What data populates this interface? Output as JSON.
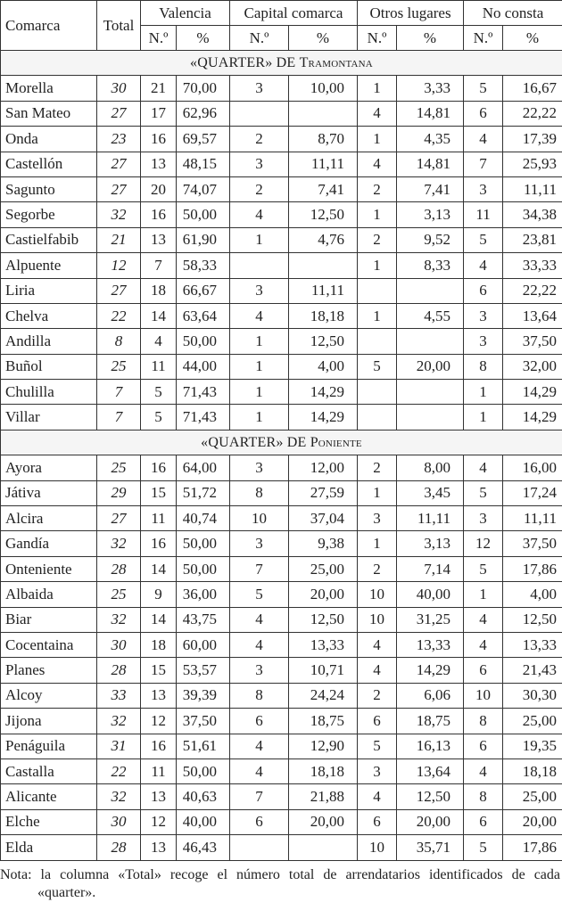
{
  "header": {
    "comarca": "Comarca",
    "total": "Total",
    "groups": [
      "Valencia",
      "Capital comarca",
      "Otros lugares",
      "No consta"
    ],
    "sub_n": "N.º",
    "sub_pct": "%"
  },
  "sections": [
    {
      "title_prefix": "«QUARTER» DE ",
      "title_name": "Tramontana",
      "rows": [
        [
          "Morella",
          "30",
          "21",
          "70,00",
          "3",
          "10,00",
          "1",
          "3,33",
          "5",
          "16,67"
        ],
        [
          "San Mateo",
          "27",
          "17",
          "62,96",
          "",
          "",
          "4",
          "14,81",
          "6",
          "22,22"
        ],
        [
          "Onda",
          "23",
          "16",
          "69,57",
          "2",
          "8,70",
          "1",
          "4,35",
          "4",
          "17,39"
        ],
        [
          "Castellón",
          "27",
          "13",
          "48,15",
          "3",
          "11,11",
          "4",
          "14,81",
          "7",
          "25,93"
        ],
        [
          "Sagunto",
          "27",
          "20",
          "74,07",
          "2",
          "7,41",
          "2",
          "7,41",
          "3",
          "11,11"
        ],
        [
          "Segorbe",
          "32",
          "16",
          "50,00",
          "4",
          "12,50",
          "1",
          "3,13",
          "11",
          "34,38"
        ],
        [
          "Castielfabib",
          "21",
          "13",
          "61,90",
          "1",
          "4,76",
          "2",
          "9,52",
          "5",
          "23,81"
        ],
        [
          "Alpuente",
          "12",
          "7",
          "58,33",
          "",
          "",
          "1",
          "8,33",
          "4",
          "33,33"
        ],
        [
          "Liria",
          "27",
          "18",
          "66,67",
          "3",
          "11,11",
          "",
          "",
          "6",
          "22,22"
        ],
        [
          "Chelva",
          "22",
          "14",
          "63,64",
          "4",
          "18,18",
          "1",
          "4,55",
          "3",
          "13,64"
        ],
        [
          "Andilla",
          "8",
          "4",
          "50,00",
          "1",
          "12,50",
          "",
          "",
          "3",
          "37,50"
        ],
        [
          "Buñol",
          "25",
          "11",
          "44,00",
          "1",
          "4,00",
          "5",
          "20,00",
          "8",
          "32,00"
        ],
        [
          "Chulilla",
          "7",
          "5",
          "71,43",
          "1",
          "14,29",
          "",
          "",
          "1",
          "14,29"
        ],
        [
          "Villar",
          "7",
          "5",
          "71,43",
          "1",
          "14,29",
          "",
          "",
          "1",
          "14,29"
        ]
      ]
    },
    {
      "title_prefix": "«QUARTER» DE ",
      "title_name": "Poniente",
      "rows": [
        [
          "Ayora",
          "25",
          "16",
          "64,00",
          "3",
          "12,00",
          "2",
          "8,00",
          "4",
          "16,00"
        ],
        [
          "Játiva",
          "29",
          "15",
          "51,72",
          "8",
          "27,59",
          "1",
          "3,45",
          "5",
          "17,24"
        ],
        [
          "Alcira",
          "27",
          "11",
          "40,74",
          "10",
          "37,04",
          "3",
          "11,11",
          "3",
          "11,11"
        ],
        [
          "Gandía",
          "32",
          "16",
          "50,00",
          "3",
          "9,38",
          "1",
          "3,13",
          "12",
          "37,50"
        ],
        [
          "Onteniente",
          "28",
          "14",
          "50,00",
          "7",
          "25,00",
          "2",
          "7,14",
          "5",
          "17,86"
        ],
        [
          "Albaida",
          "25",
          "9",
          "36,00",
          "5",
          "20,00",
          "10",
          "40,00",
          "1",
          "4,00"
        ],
        [
          "Biar",
          "32",
          "14",
          "43,75",
          "4",
          "12,50",
          "10",
          "31,25",
          "4",
          "12,50"
        ],
        [
          "Cocentaina",
          "30",
          "18",
          "60,00",
          "4",
          "13,33",
          "4",
          "13,33",
          "4",
          "13,33"
        ],
        [
          "Planes",
          "28",
          "15",
          "53,57",
          "3",
          "10,71",
          "4",
          "14,29",
          "6",
          "21,43"
        ],
        [
          "Alcoy",
          "33",
          "13",
          "39,39",
          "8",
          "24,24",
          "2",
          "6,06",
          "10",
          "30,30"
        ],
        [
          "Jijona",
          "32",
          "12",
          "37,50",
          "6",
          "18,75",
          "6",
          "18,75",
          "8",
          "25,00"
        ],
        [
          "Penáguila",
          "31",
          "16",
          "51,61",
          "4",
          "12,90",
          "5",
          "16,13",
          "6",
          "19,35"
        ],
        [
          "Castalla",
          "22",
          "11",
          "50,00",
          "4",
          "18,18",
          "3",
          "13,64",
          "4",
          "18,18"
        ],
        [
          "Alicante",
          "32",
          "13",
          "40,63",
          "7",
          "21,88",
          "4",
          "12,50",
          "8",
          "25,00"
        ],
        [
          "Elche",
          "30",
          "12",
          "40,00",
          "6",
          "20,00",
          "6",
          "20,00",
          "6",
          "20,00"
        ],
        [
          "Elda",
          "28",
          "13",
          "46,43",
          "",
          "",
          "10",
          "35,71",
          "5",
          "17,86"
        ]
      ]
    }
  ],
  "note": {
    "line1": "Nota: la columna «Total» recoge el número total de arrendatarios identificados de cada",
    "line2": "«quarter»."
  }
}
